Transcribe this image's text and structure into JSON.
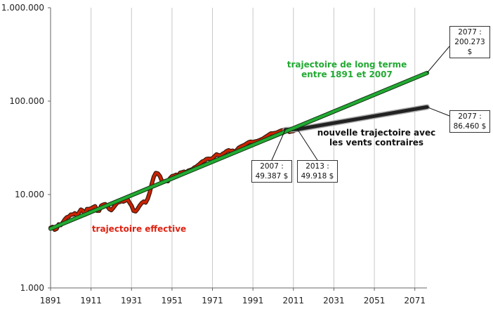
{
  "chart_data": {
    "type": "line",
    "y_scale": "log",
    "ylim": [
      1000,
      1000000
    ],
    "xlim": [
      1891,
      2077
    ],
    "y_tick_labels": [
      "1.000",
      "10.000",
      "100.000",
      "1.000.000"
    ],
    "y_tick_values": [
      1000,
      10000,
      100000,
      1000000
    ],
    "x_tick_labels": [
      "1891",
      "1911",
      "1931",
      "1951",
      "1971",
      "1991",
      "2011",
      "2031",
      "2051",
      "2071"
    ],
    "x_tick_values": [
      1891,
      1911,
      1931,
      1951,
      1971,
      1991,
      2011,
      2031,
      2051,
      2071
    ],
    "grid": "vertical",
    "series": [
      {
        "name": "trajectoire effective",
        "color": "#cc2200",
        "x": [
          1891,
          1892,
          1893,
          1894,
          1895,
          1896,
          1897,
          1898,
          1899,
          1900,
          1901,
          1902,
          1903,
          1904,
          1905,
          1906,
          1907,
          1908,
          1909,
          1910,
          1911,
          1912,
          1913,
          1914,
          1915,
          1916,
          1917,
          1918,
          1919,
          1920,
          1921,
          1922,
          1923,
          1924,
          1925,
          1926,
          1927,
          1928,
          1929,
          1930,
          1931,
          1932,
          1933,
          1934,
          1935,
          1936,
          1937,
          1938,
          1939,
          1940,
          1941,
          1942,
          1943,
          1944,
          1945,
          1946,
          1947,
          1948,
          1949,
          1950,
          1951,
          1952,
          1953,
          1954,
          1955,
          1956,
          1957,
          1958,
          1959,
          1960,
          1961,
          1962,
          1963,
          1964,
          1965,
          1966,
          1967,
          1968,
          1969,
          1970,
          1971,
          1972,
          1973,
          1974,
          1975,
          1976,
          1977,
          1978,
          1979,
          1980,
          1981,
          1982,
          1983,
          1984,
          1985,
          1986,
          1987,
          1988,
          1989,
          1990,
          1991,
          1992,
          1993,
          1994,
          1995,
          1996,
          1997,
          1998,
          1999,
          2000,
          2001,
          2002,
          2003,
          2004,
          2005,
          2006,
          2007,
          2008,
          2009,
          2010,
          2011,
          2012,
          2013
        ],
        "y": [
          4400,
          4500,
          4200,
          4300,
          4800,
          4700,
          5000,
          5400,
          5700,
          5800,
          6100,
          6100,
          6300,
          5900,
          6400,
          6900,
          6700,
          6100,
          7000,
          7000,
          7100,
          7300,
          7500,
          6700,
          6700,
          7600,
          7800,
          7900,
          7500,
          7000,
          6800,
          7200,
          7700,
          8200,
          8300,
          8500,
          8400,
          8600,
          8900,
          8200,
          7600,
          6700,
          6600,
          7000,
          7600,
          8100,
          8400,
          8200,
          9000,
          10500,
          13000,
          15500,
          17000,
          16800,
          15800,
          14000,
          13700,
          14000,
          13900,
          14900,
          15700,
          15900,
          16300,
          16000,
          17100,
          17300,
          17600,
          17200,
          18000,
          18300,
          18600,
          19400,
          19900,
          20700,
          21600,
          22600,
          23000,
          24000,
          24200,
          24000,
          24500,
          25700,
          26900,
          26400,
          26000,
          27300,
          28000,
          29200,
          29800,
          29200,
          29500,
          28500,
          29900,
          31700,
          32600,
          33400,
          34100,
          35300,
          36400,
          36800,
          36300,
          37000,
          37300,
          38000,
          38800,
          39700,
          41100,
          42400,
          43900,
          45200,
          45100,
          45600,
          46200,
          47400,
          48400,
          49000,
          49387,
          48800,
          46800,
          47400,
          47800,
          49100,
          49918
        ]
      },
      {
        "name": "trajectoire de long terme entre 1891 et 2007",
        "color": "#22aa33",
        "x": [
          1891,
          2077
        ],
        "y": [
          4300,
          200273
        ]
      },
      {
        "name": "nouvelle trajectoire avec les vents contraires",
        "color": "#222222",
        "x": [
          2007,
          2013,
          2077
        ],
        "y": [
          49387,
          49918,
          86460
        ]
      }
    ],
    "annotations": [
      {
        "text": "trajectoire de long terme",
        "text2": "entre 1891 et 2007"
      },
      {
        "text": "nouvelle trajectoire avec",
        "text2": "les vents contraires"
      },
      {
        "text": "trajectoire effective"
      }
    ],
    "callouts": [
      {
        "label": "2077 :",
        "value": "200.273 $",
        "x": 2077,
        "y": 200273
      },
      {
        "label": "2077 :",
        "value": "86.460 $",
        "x": 2077,
        "y": 86460
      },
      {
        "label": "2007 :",
        "value": "49.387 $",
        "x": 2007,
        "y": 49387
      },
      {
        "label": "2013 :",
        "value": "49.918 $",
        "x": 2013,
        "y": 49918
      }
    ]
  }
}
